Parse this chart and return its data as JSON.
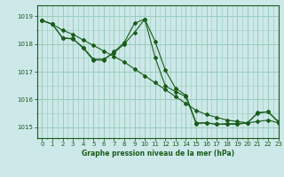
{
  "background_color": "#cce8e8",
  "grid_color": "#99ccbb",
  "line_color": "#1a5c1a",
  "title": "Graphe pression niveau de la mer (hPa)",
  "ylim": [
    1014.6,
    1019.4
  ],
  "xlim": [
    -0.5,
    23
  ],
  "yticks": [
    1015,
    1016,
    1017,
    1018,
    1019
  ],
  "xticks": [
    0,
    1,
    2,
    3,
    4,
    5,
    6,
    7,
    8,
    9,
    10,
    11,
    12,
    13,
    14,
    15,
    16,
    17,
    18,
    19,
    20,
    21,
    22,
    23
  ],
  "series": [
    {
      "x": [
        0,
        1,
        2,
        3,
        4,
        5,
        6,
        7,
        8,
        9,
        10,
        11,
        12,
        13,
        14,
        15,
        16,
        17,
        18,
        19,
        20,
        21,
        22,
        23
      ],
      "y": [
        1018.85,
        1018.72,
        1018.5,
        1018.35,
        1018.15,
        1017.95,
        1017.75,
        1017.55,
        1017.35,
        1017.1,
        1016.85,
        1016.6,
        1016.35,
        1016.1,
        1015.85,
        1015.6,
        1015.45,
        1015.35,
        1015.25,
        1015.2,
        1015.15,
        1015.2,
        1015.25,
        1015.15
      ]
    },
    {
      "x": [
        0,
        1,
        2,
        3,
        4,
        5,
        6,
        7,
        8,
        9,
        10,
        11,
        12,
        13,
        14,
        15,
        16,
        17,
        18,
        19,
        20,
        21,
        22,
        23
      ],
      "y": [
        1018.85,
        1018.72,
        1018.22,
        1018.2,
        1017.85,
        1017.42,
        1017.42,
        1017.72,
        1018.05,
        1018.75,
        1018.9,
        1018.1,
        1017.05,
        1016.4,
        1016.15,
        1015.15,
        1015.15,
        1015.1,
        1015.1,
        1015.1,
        1015.15,
        1015.5,
        1015.55,
        1015.2
      ]
    },
    {
      "x": [
        0,
        1,
        2,
        3,
        4,
        5,
        6,
        7,
        8,
        9,
        10,
        11,
        12,
        13,
        14,
        15,
        16,
        17,
        18,
        19,
        20,
        21,
        22,
        23
      ],
      "y": [
        1018.85,
        1018.72,
        1018.22,
        1018.18,
        1017.88,
        1017.45,
        1017.45,
        1017.68,
        1018.0,
        1018.42,
        1018.9,
        1017.52,
        1016.48,
        1016.28,
        1016.1,
        1015.12,
        1015.15,
        1015.1,
        1015.12,
        1015.12,
        1015.15,
        1015.52,
        1015.55,
        1015.18
      ]
    }
  ]
}
